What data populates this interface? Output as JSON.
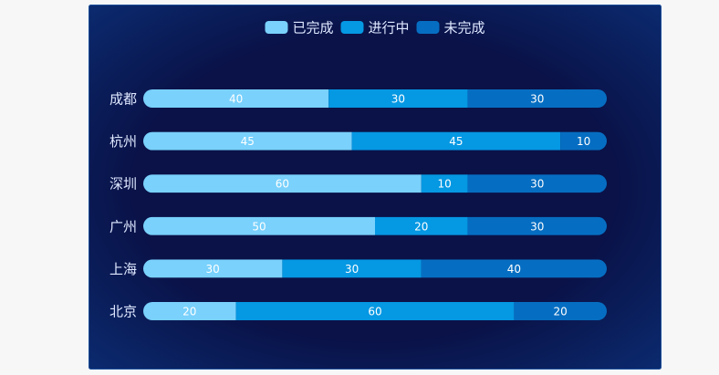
{
  "chart_data": {
    "type": "stacked-bar-horizontal",
    "categories": [
      "成都",
      "杭州",
      "深圳",
      "广州",
      "上海",
      "北京"
    ],
    "series": [
      {
        "name": "已完成",
        "color": "#79d1fc",
        "values": [
          40,
          45,
          60,
          50,
          30,
          20
        ]
      },
      {
        "name": "进行中",
        "color": "#0598e3",
        "values": [
          30,
          45,
          10,
          20,
          30,
          60
        ]
      },
      {
        "name": "未完成",
        "color": "#066ec2",
        "values": [
          30,
          10,
          30,
          30,
          40,
          20
        ]
      }
    ],
    "legend": "top"
  }
}
